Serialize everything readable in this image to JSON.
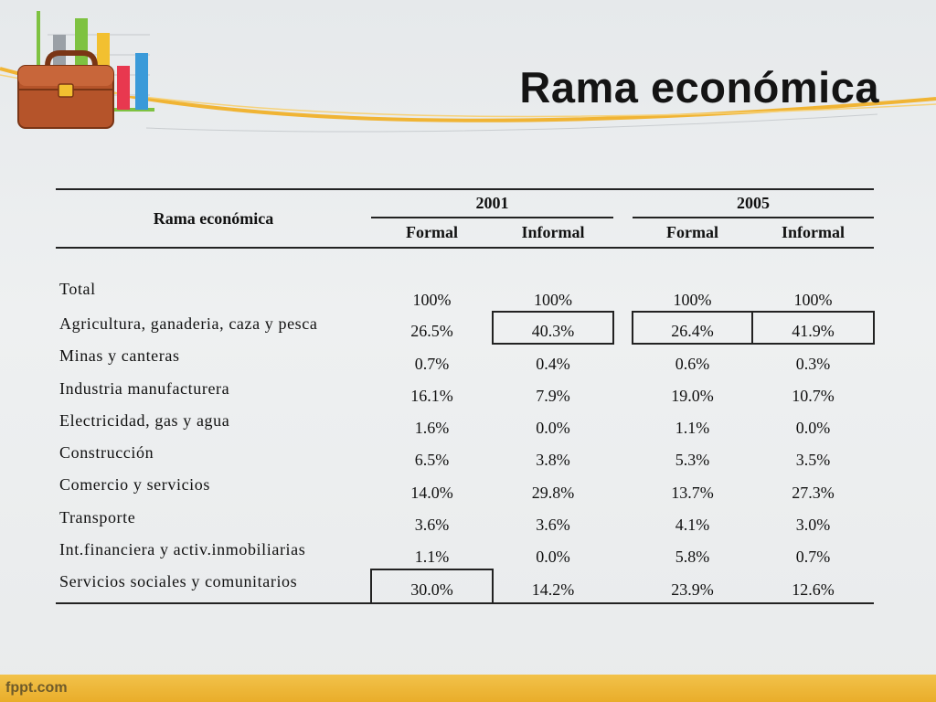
{
  "slide": {
    "title": "Rama económica",
    "footer": "fppt.com"
  },
  "table": {
    "header": {
      "rama": "Rama económica",
      "years": [
        "2001",
        "2005"
      ],
      "sub": [
        "Formal",
        "Informal",
        "Formal",
        "Informal"
      ]
    },
    "rows": [
      {
        "label": "Total",
        "values": [
          "100%",
          "100%",
          "100%",
          "100%"
        ]
      },
      {
        "label": "Agricultura, ganaderia, caza y pesca",
        "values": [
          "26.5%",
          "40.3%",
          "26.4%",
          "41.9%"
        ]
      },
      {
        "label": "Minas y canteras",
        "values": [
          "0.7%",
          "0.4%",
          "0.6%",
          "0.3%"
        ]
      },
      {
        "label": "Industria manufacturera",
        "values": [
          "16.1%",
          "7.9%",
          "19.0%",
          "10.7%"
        ]
      },
      {
        "label": "Electricidad, gas y agua",
        "values": [
          "1.6%",
          "0.0%",
          "1.1%",
          "0.0%"
        ]
      },
      {
        "label": "Construcción",
        "values": [
          "6.5%",
          "3.8%",
          "5.3%",
          "3.5%"
        ]
      },
      {
        "label": "Comercio y servicios",
        "values": [
          "14.0%",
          "29.8%",
          "13.7%",
          "27.3%"
        ]
      },
      {
        "label": "Transporte",
        "values": [
          "3.6%",
          "3.6%",
          "4.1%",
          "3.0%"
        ]
      },
      {
        "label": "Int.financiera y activ.inmobiliarias",
        "values": [
          "1.1%",
          "0.0%",
          "5.8%",
          "0.7%"
        ]
      },
      {
        "label": "Servicios sociales y comunitarios",
        "values": [
          "30.0%",
          "14.2%",
          "23.9%",
          "12.6%"
        ]
      }
    ]
  },
  "icons": {
    "logo": "briefcase-chart-icon"
  },
  "colors": {
    "accent": "#e9ad2a",
    "swoosh": "#f0b434",
    "briefcase": "#b5542a"
  }
}
